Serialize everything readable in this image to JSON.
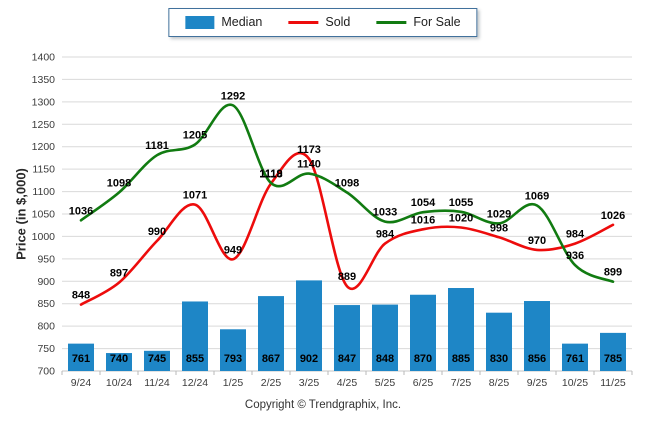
{
  "footer": {
    "copyright": "Copyright © Trendgraphix, Inc."
  },
  "chart_data": {
    "type": "bar+line",
    "title": "",
    "xlabel": "",
    "ylabel": "Price (in $,000)",
    "categories": [
      "9/24",
      "10/24",
      "11/24",
      "12/24",
      "1/25",
      "2/25",
      "3/25",
      "4/25",
      "5/25",
      "6/25",
      "7/25",
      "8/25",
      "9/25",
      "10/25",
      "11/25"
    ],
    "series": [
      {
        "name": "Median",
        "type": "bar",
        "color": "#1E86C6",
        "values": [
          761,
          740,
          745,
          855,
          793,
          867,
          902,
          847,
          848,
          870,
          885,
          830,
          856,
          761,
          785
        ]
      },
      {
        "name": "Sold",
        "type": "line",
        "color": "#ED0C0C",
        "values": [
          848,
          897,
          990,
          1071,
          949,
          1118,
          1173,
          889,
          984,
          1016,
          1020,
          998,
          970,
          984,
          1026
        ]
      },
      {
        "name": "For Sale",
        "type": "line",
        "color": "#117B11",
        "values": [
          1036,
          1098,
          1181,
          1205,
          1292,
          1119,
          1140,
          1098,
          1033,
          1054,
          1055,
          1029,
          1069,
          936,
          899
        ]
      }
    ],
    "ylim": [
      700,
      1400
    ],
    "ytick_step": 50,
    "y_ticks": [
      700,
      750,
      800,
      850,
      900,
      950,
      1000,
      1050,
      1100,
      1150,
      1200,
      1250,
      1300,
      1350,
      1400
    ],
    "grid": true,
    "legend_position": "top-center",
    "axis_text_color": "#3c3c3c",
    "data_label_color": "#000000",
    "grid_color": "#d9d9d9"
  }
}
